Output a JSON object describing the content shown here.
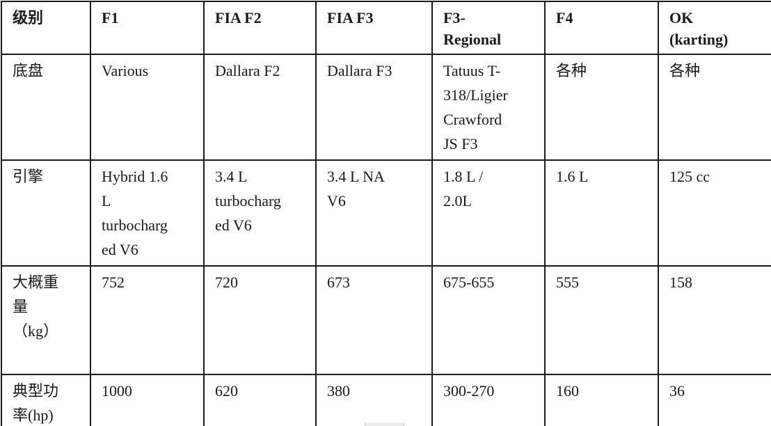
{
  "table": {
    "columns": [
      "级别",
      "F1",
      "FIA F2",
      "FIA F3",
      "F3-\nRegional",
      "F4",
      "OK\n(karting)"
    ],
    "rows": [
      {
        "label": "底盘",
        "cells": [
          "Various",
          "Dallara F2",
          "Dallara F3",
          "Tatuus T-\n318/Ligier\nCrawford\nJS F3",
          "各种",
          "各种"
        ]
      },
      {
        "label": "引擎",
        "cells": [
          "Hybrid 1.6\nL\nturbocharg\ned V6",
          "3.4 L\nturbocharg\ned V6",
          "3.4 L NA\nV6",
          "1.8 L /\n2.0L",
          "1.6 L",
          "125 cc"
        ]
      },
      {
        "label": "大概重\n量\n（kg）",
        "cells": [
          "752",
          "720",
          "673",
          "675-655",
          "555",
          "158"
        ]
      },
      {
        "label": "典型功\n率(hp)",
        "cells": [
          "1000",
          "620",
          "380",
          "300-270",
          "160",
          "36"
        ]
      }
    ]
  },
  "colors": {
    "border": "#1b1b1b",
    "text": "#1a1a1a",
    "background": "#ffffff"
  }
}
